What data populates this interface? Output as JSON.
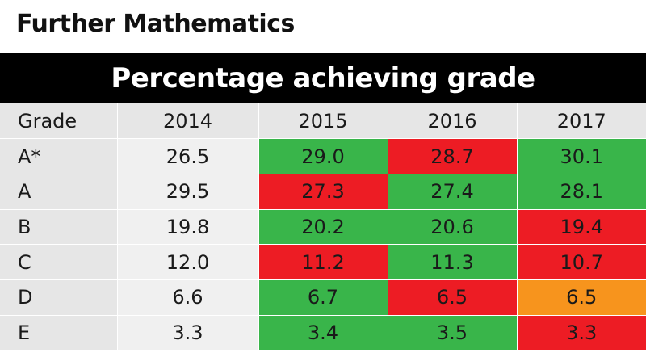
{
  "title": "Further Mathematics",
  "banner": "Percentage achieving grade",
  "colors": {
    "increase": "#39b54a",
    "decrease": "#ed1c24",
    "unchanged": "#f7941d",
    "header_bg": "#e6e6e6",
    "banner_bg": "#000000"
  },
  "chart_data": {
    "type": "table",
    "columns": [
      "Grade",
      "2014",
      "2015",
      "2016",
      "2017"
    ],
    "rows": [
      {
        "grade": "A*",
        "values": [
          "26.5",
          "29.0",
          "28.7",
          "30.1"
        ],
        "status": [
          "none",
          "up",
          "down",
          "up"
        ]
      },
      {
        "grade": "A",
        "values": [
          "29.5",
          "27.3",
          "27.4",
          "28.1"
        ],
        "status": [
          "none",
          "down",
          "up",
          "up"
        ]
      },
      {
        "grade": "B",
        "values": [
          "19.8",
          "20.2",
          "20.6",
          "19.4"
        ],
        "status": [
          "none",
          "up",
          "up",
          "down"
        ]
      },
      {
        "grade": "C",
        "values": [
          "12.0",
          "11.2",
          "11.3",
          "10.7"
        ],
        "status": [
          "none",
          "down",
          "up",
          "down"
        ]
      },
      {
        "grade": "D",
        "values": [
          "6.6",
          "6.7",
          "6.5",
          "6.5"
        ],
        "status": [
          "none",
          "up",
          "down",
          "same"
        ]
      },
      {
        "grade": "E",
        "values": [
          "3.3",
          "3.4",
          "3.5",
          "3.3"
        ],
        "status": [
          "none",
          "up",
          "up",
          "down"
        ]
      }
    ]
  }
}
